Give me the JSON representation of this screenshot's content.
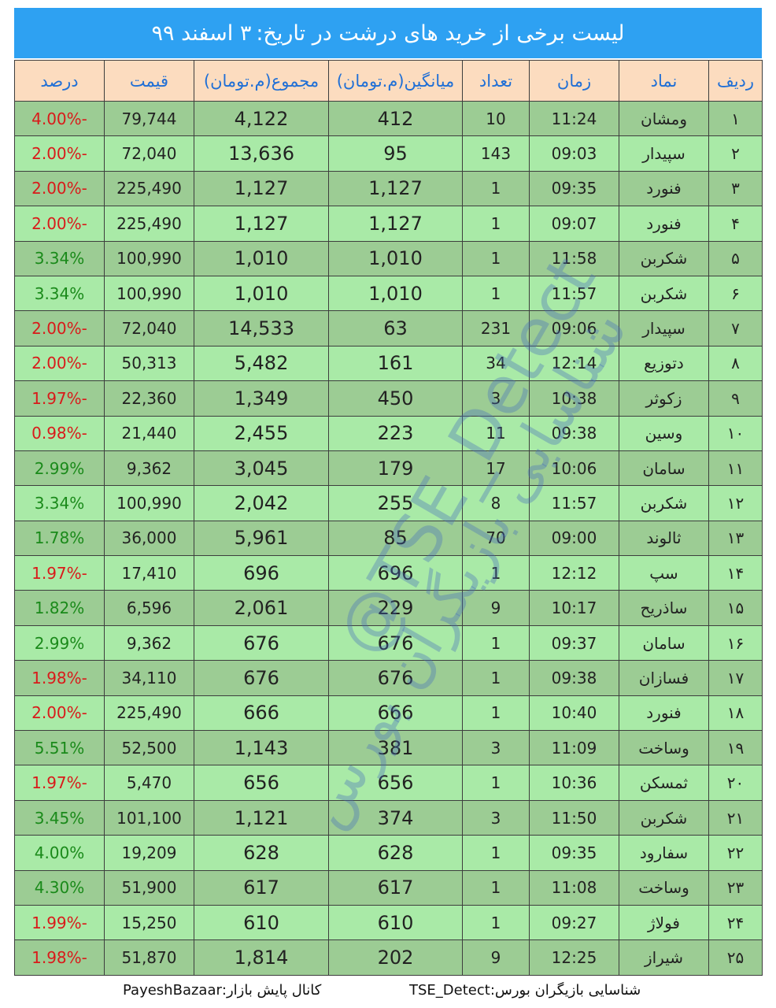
{
  "title": {
    "text": "لیست برخی از خرید های درشت در تاریخ:",
    "date": "۳ اسفند ۹۹"
  },
  "columns": [
    "ردیف",
    "نماد",
    "زمان",
    "تعداد",
    "میانگین(م.تومان)",
    "مجموع(م.تومان)",
    "قیمت",
    "درصد"
  ],
  "rows": [
    {
      "idx": "۱",
      "symbol": "ومشان",
      "time": "11:24",
      "count": "10",
      "avg": "412",
      "total": "4,122",
      "price": "79,744",
      "pct": "-4.00%"
    },
    {
      "idx": "۲",
      "symbol": "سپیدار",
      "time": "09:03",
      "count": "143",
      "avg": "95",
      "total": "13,636",
      "price": "72,040",
      "pct": "-2.00%"
    },
    {
      "idx": "۳",
      "symbol": "فنورد",
      "time": "09:35",
      "count": "1",
      "avg": "1,127",
      "total": "1,127",
      "price": "225,490",
      "pct": "-2.00%"
    },
    {
      "idx": "۴",
      "symbol": "فنورد",
      "time": "09:07",
      "count": "1",
      "avg": "1,127",
      "total": "1,127",
      "price": "225,490",
      "pct": "-2.00%"
    },
    {
      "idx": "۵",
      "symbol": "شکربن",
      "time": "11:58",
      "count": "1",
      "avg": "1,010",
      "total": "1,010",
      "price": "100,990",
      "pct": "3.34%"
    },
    {
      "idx": "۶",
      "symbol": "شکربن",
      "time": "11:57",
      "count": "1",
      "avg": "1,010",
      "total": "1,010",
      "price": "100,990",
      "pct": "3.34%"
    },
    {
      "idx": "۷",
      "symbol": "سپیدار",
      "time": "09:06",
      "count": "231",
      "avg": "63",
      "total": "14,533",
      "price": "72,040",
      "pct": "-2.00%"
    },
    {
      "idx": "۸",
      "symbol": "دتوزیع",
      "time": "12:14",
      "count": "34",
      "avg": "161",
      "total": "5,482",
      "price": "50,313",
      "pct": "-2.00%"
    },
    {
      "idx": "۹",
      "symbol": "زکوثر",
      "time": "10:38",
      "count": "3",
      "avg": "450",
      "total": "1,349",
      "price": "22,360",
      "pct": "-1.97%"
    },
    {
      "idx": "۱۰",
      "symbol": "وسین",
      "time": "09:38",
      "count": "11",
      "avg": "223",
      "total": "2,455",
      "price": "21,440",
      "pct": "-0.98%"
    },
    {
      "idx": "۱۱",
      "symbol": "سامان",
      "time": "10:06",
      "count": "17",
      "avg": "179",
      "total": "3,045",
      "price": "9,362",
      "pct": "2.99%"
    },
    {
      "idx": "۱۲",
      "symbol": "شکربن",
      "time": "11:57",
      "count": "8",
      "avg": "255",
      "total": "2,042",
      "price": "100,990",
      "pct": "3.34%"
    },
    {
      "idx": "۱۳",
      "symbol": "ثالوند",
      "time": "09:00",
      "count": "70",
      "avg": "85",
      "total": "5,961",
      "price": "36,000",
      "pct": "1.78%"
    },
    {
      "idx": "۱۴",
      "symbol": "سپ",
      "time": "12:12",
      "count": "1",
      "avg": "696",
      "total": "696",
      "price": "17,410",
      "pct": "-1.97%"
    },
    {
      "idx": "۱۵",
      "symbol": "ساذریح",
      "time": "10:17",
      "count": "9",
      "avg": "229",
      "total": "2,061",
      "price": "6,596",
      "pct": "1.82%"
    },
    {
      "idx": "۱۶",
      "symbol": "سامان",
      "time": "09:37",
      "count": "1",
      "avg": "676",
      "total": "676",
      "price": "9,362",
      "pct": "2.99%"
    },
    {
      "idx": "۱۷",
      "symbol": "فسازان",
      "time": "09:38",
      "count": "1",
      "avg": "676",
      "total": "676",
      "price": "34,110",
      "pct": "-1.98%"
    },
    {
      "idx": "۱۸",
      "symbol": "فنورد",
      "time": "10:40",
      "count": "1",
      "avg": "666",
      "total": "666",
      "price": "225,490",
      "pct": "-2.00%"
    },
    {
      "idx": "۱۹",
      "symbol": "وساخت",
      "time": "11:09",
      "count": "3",
      "avg": "381",
      "total": "1,143",
      "price": "52,500",
      "pct": "5.51%"
    },
    {
      "idx": "۲۰",
      "symbol": "ثمسکن",
      "time": "10:36",
      "count": "1",
      "avg": "656",
      "total": "656",
      "price": "5,470",
      "pct": "-1.97%"
    },
    {
      "idx": "۲۱",
      "symbol": "شکربن",
      "time": "11:50",
      "count": "3",
      "avg": "374",
      "total": "1,121",
      "price": "101,100",
      "pct": "3.45%"
    },
    {
      "idx": "۲۲",
      "symbol": "سفارود",
      "time": "09:35",
      "count": "1",
      "avg": "628",
      "total": "628",
      "price": "19,209",
      "pct": "4.00%"
    },
    {
      "idx": "۲۳",
      "symbol": "وساخت",
      "time": "11:08",
      "count": "1",
      "avg": "617",
      "total": "617",
      "price": "51,900",
      "pct": "4.30%"
    },
    {
      "idx": "۲۴",
      "symbol": "فولاژ",
      "time": "09:27",
      "count": "1",
      "avg": "610",
      "total": "610",
      "price": "15,250",
      "pct": "-1.99%"
    },
    {
      "idx": "۲۵",
      "symbol": "شیراز",
      "time": "12:25",
      "count": "9",
      "avg": "202",
      "total": "1,814",
      "price": "51,870",
      "pct": "-1.98%"
    }
  ],
  "footer": {
    "left": "کانال پایش بازار:PayeshBazaar",
    "right": "شناسایی بازیگران بورس:TSE_Detect"
  },
  "watermark": {
    "latin": "@TSE_Detect",
    "persian": "شناسایی بازیگران بورس"
  },
  "colors": {
    "title_bg": "#2ea1f2",
    "header_bg": "#fcdcbf",
    "header_text": "#1f6fd6",
    "row_dark": "#9ccc94",
    "row_light": "#a9eaa7",
    "negative": "#d91a1a",
    "positive": "#1a8a1a"
  }
}
